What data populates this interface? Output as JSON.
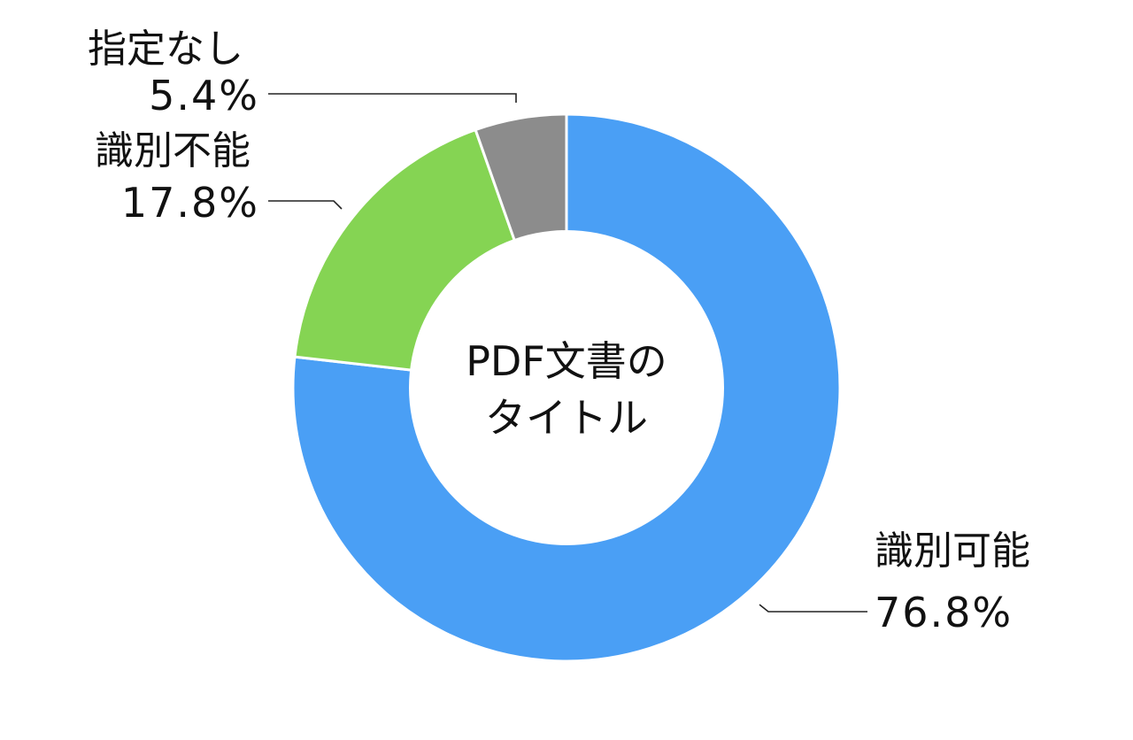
{
  "chart_data": {
    "type": "pie",
    "donut": true,
    "center_label": [
      "PDF文書の",
      "タイトル"
    ],
    "slices": [
      {
        "name": "識別可能",
        "value": 76.8,
        "label": "76.8%",
        "color": "#4a9ff5"
      },
      {
        "name": "識別不能",
        "value": 17.8,
        "label": "17.8%",
        "color": "#85d453"
      },
      {
        "name": "指定なし",
        "value": 5.4,
        "label": "5.4%",
        "color": "#8c8c8c"
      }
    ],
    "start_angle": "12 o'clock",
    "direction": "clockwise",
    "legend": "none"
  }
}
